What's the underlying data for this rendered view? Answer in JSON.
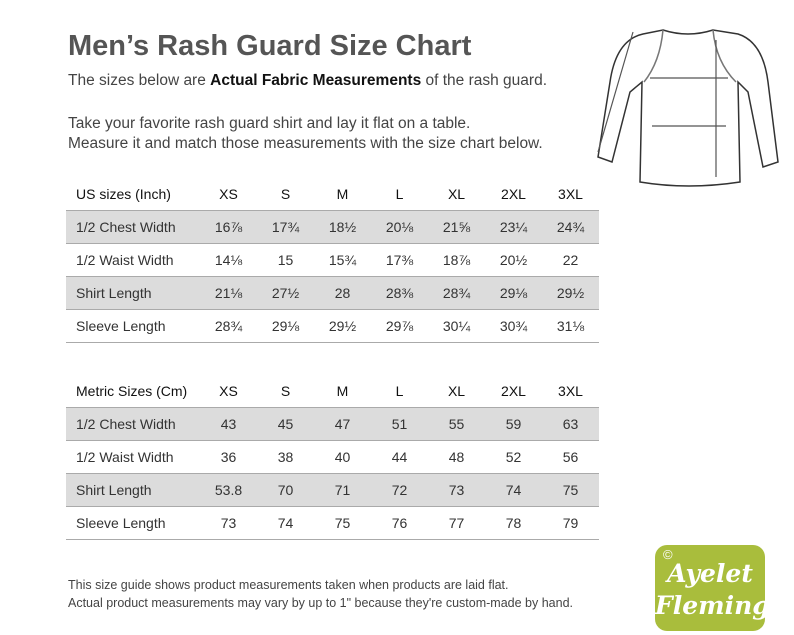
{
  "header": {
    "title": "Men’s Rash Guard Size Chart",
    "intro": [
      "The sizes below are ",
      "Actual Fabric Measurements",
      " of the rash guard."
    ],
    "instructions": [
      "Take your favorite rash guard shirt and lay it flat on a table.",
      "Measure it and match those measurements with the size chart below."
    ]
  },
  "tables": [
    {
      "columns": [
        "US sizes (Inch)",
        "XS",
        "S",
        "M",
        "L",
        "XL",
        "2XL",
        "3XL"
      ],
      "rows": [
        [
          "1/2 Chest Width",
          "16⅞",
          "17¾",
          "18½",
          "20⅛",
          "21⅝",
          "23¼",
          "24¾"
        ],
        [
          "1/2 Waist Width",
          "14⅛",
          "15",
          "15¾",
          "17⅜",
          "18⅞",
          "20½",
          "22"
        ],
        [
          "Shirt Length",
          "21⅛",
          "27½",
          "28",
          "28⅜",
          "28¾",
          "29⅛",
          "29½"
        ],
        [
          "Sleeve Length",
          "28¾",
          "29⅛",
          "29½",
          "29⅞",
          "30¼",
          "30¾",
          "31⅛"
        ]
      ]
    },
    {
      "columns": [
        "Metric Sizes (Cm)",
        "XS",
        "S",
        "M",
        "L",
        "XL",
        "2XL",
        "3XL"
      ],
      "rows": [
        [
          "1/2 Chest Width",
          43,
          45,
          47,
          51,
          55,
          59,
          63
        ],
        [
          "1/2 Waist Width",
          36,
          38,
          40,
          44,
          48,
          52,
          56
        ],
        [
          "Shirt Length",
          53.8,
          70,
          71,
          72,
          73,
          74,
          75
        ],
        [
          "Sleeve Length",
          73,
          74,
          75,
          76,
          77,
          78,
          79
        ]
      ]
    }
  ],
  "footer": [
    "This size guide shows product measurements taken when products are laid flat.",
    "Actual product measurements may vary by up to 1\" because they're custom-made by hand."
  ],
  "logo": {
    "mark": "©",
    "lines": [
      "Ayelet",
      "Fleming"
    ]
  }
}
